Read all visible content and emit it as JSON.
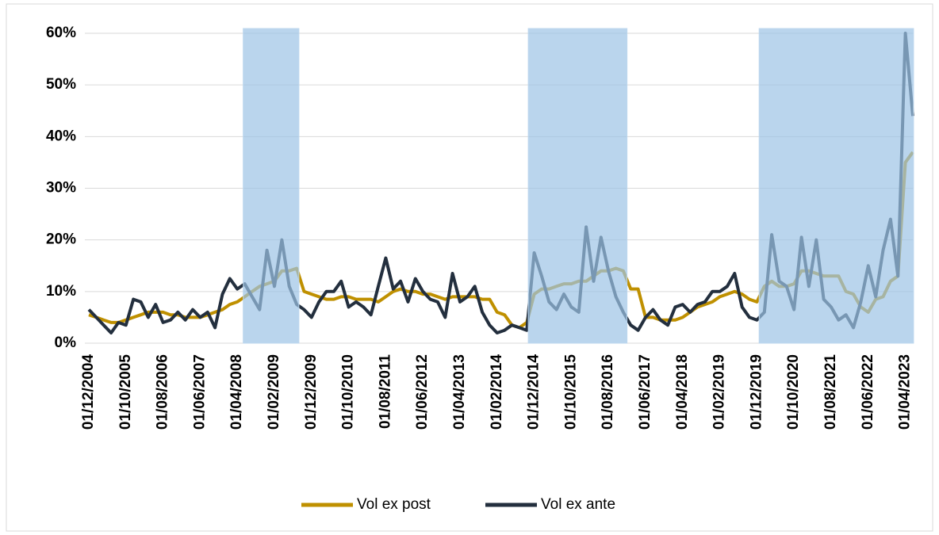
{
  "chart_data": {
    "type": "line",
    "categories": [
      "01/12/2004",
      null,
      null,
      null,
      null,
      "01/10/2005",
      null,
      null,
      null,
      null,
      "01/08/2006",
      null,
      null,
      null,
      null,
      "01/06/2007",
      null,
      null,
      null,
      null,
      "01/04/2008",
      null,
      null,
      null,
      null,
      "01/02/2009",
      null,
      null,
      null,
      null,
      "01/12/2009",
      null,
      null,
      null,
      null,
      "01/10/2010",
      null,
      null,
      null,
      null,
      "01/08/2011",
      null,
      null,
      null,
      null,
      "01/06/2012",
      null,
      null,
      null,
      null,
      "01/04/2013",
      null,
      null,
      null,
      null,
      "01/02/2014",
      null,
      null,
      null,
      null,
      "01/12/2014",
      null,
      null,
      null,
      null,
      "01/10/2015",
      null,
      null,
      null,
      null,
      "01/08/2016",
      null,
      null,
      null,
      null,
      "01/06/2017",
      null,
      null,
      null,
      null,
      "01/04/2018",
      null,
      null,
      null,
      null,
      "01/02/2019",
      null,
      null,
      null,
      null,
      "01/12/2019",
      null,
      null,
      null,
      null,
      "01/10/2020",
      null,
      null,
      null,
      null,
      "01/08/2021",
      null,
      null,
      null,
      null,
      "01/06/2022",
      null,
      null,
      null,
      null,
      "01/04/2023",
      null
    ],
    "series": [
      {
        "name": "Vol ex post",
        "color": "#bf9000",
        "values": [
          5.5,
          5,
          4.5,
          4,
          4,
          4.5,
          5,
          5.5,
          6,
          6,
          6,
          5.5,
          5.5,
          5,
          5,
          5,
          5.5,
          6,
          6.5,
          7.5,
          8,
          9,
          10,
          11,
          11.5,
          12,
          14,
          14,
          14.5,
          10,
          9.5,
          9,
          8.5,
          8.5,
          9,
          9,
          8.5,
          8.5,
          8.5,
          8,
          9,
          10,
          10.5,
          10,
          10,
          9.5,
          9.5,
          9,
          8.5,
          9,
          9,
          9,
          9,
          8.5,
          8.5,
          6,
          5.5,
          3.5,
          3,
          4,
          9.5,
          10.5,
          10.5,
          11,
          11.5,
          11.5,
          12,
          12,
          13,
          14,
          14,
          14.5,
          14,
          10.5,
          10.5,
          5,
          5,
          4.5,
          4.5,
          4.5,
          5,
          6,
          7,
          7.5,
          8,
          9,
          9.5,
          10,
          9.5,
          8.5,
          8,
          11,
          12,
          11,
          11,
          11.5,
          14,
          14,
          13.5,
          13,
          13,
          13,
          10,
          9.5,
          7,
          6,
          8.5,
          9,
          12,
          13,
          35,
          37
        ]
      },
      {
        "name": "Vol ex ante",
        "color": "#232f3e",
        "values": [
          6.5,
          5,
          3.5,
          2,
          4,
          3.5,
          8.5,
          8,
          5,
          7.5,
          4,
          4.5,
          6,
          4.5,
          6.5,
          5,
          6,
          3,
          9.5,
          12.5,
          10.5,
          11.5,
          9,
          6.5,
          18,
          11,
          20,
          11,
          7.5,
          6.5,
          5,
          8,
          10,
          10,
          12,
          7,
          8,
          7,
          5.5,
          11,
          16.5,
          10.5,
          12,
          8,
          12.5,
          10,
          8.5,
          8,
          5,
          13.5,
          8,
          9,
          11,
          6,
          3.5,
          2,
          2.5,
          3.5,
          3,
          2.5,
          17.5,
          13,
          8,
          6.5,
          9.5,
          7,
          6,
          22.5,
          12,
          20.5,
          14,
          9,
          6,
          3.5,
          2.5,
          5,
          6.5,
          4.5,
          3.5,
          7,
          7.5,
          6,
          7.5,
          8,
          10,
          10,
          11,
          13.5,
          7,
          5,
          4.5,
          6,
          21,
          12,
          11,
          6.5,
          20.5,
          11,
          20,
          8.5,
          7,
          4.5,
          5.5,
          3,
          8,
          15,
          9,
          18,
          24,
          13,
          60,
          44
        ]
      }
    ],
    "shaded_periods": [
      [
        20.8,
        28.3
      ],
      [
        59.2,
        72.5
      ],
      [
        90.3,
        111.1
      ]
    ],
    "ylim": [
      0,
      60
    ],
    "yticks": [
      {
        "value": 0,
        "label": "0%"
      },
      {
        "value": 10,
        "label": "10%"
      },
      {
        "value": 20,
        "label": "20%"
      },
      {
        "value": 30,
        "label": "30%"
      },
      {
        "value": 40,
        "label": "40%"
      },
      {
        "value": 50,
        "label": "50%"
      },
      {
        "value": 60,
        "label": "60%"
      }
    ],
    "grid": true,
    "legend": "bottom"
  }
}
